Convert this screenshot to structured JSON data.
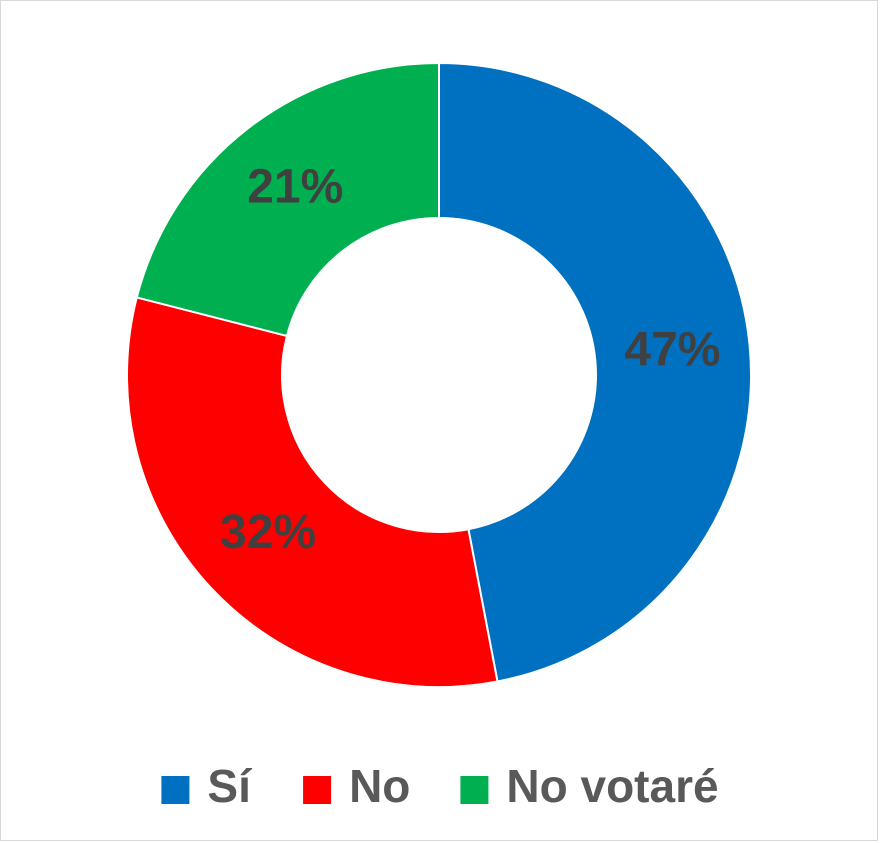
{
  "chart_data": {
    "type": "donut",
    "categories": [
      "Sí",
      "No",
      "No votaré"
    ],
    "values": [
      47,
      32,
      21
    ],
    "value_labels": [
      "47%",
      "32%",
      "21%"
    ],
    "colors": [
      "#0070c0",
      "#ff0000",
      "#00b050"
    ],
    "legend": "bottom"
  }
}
